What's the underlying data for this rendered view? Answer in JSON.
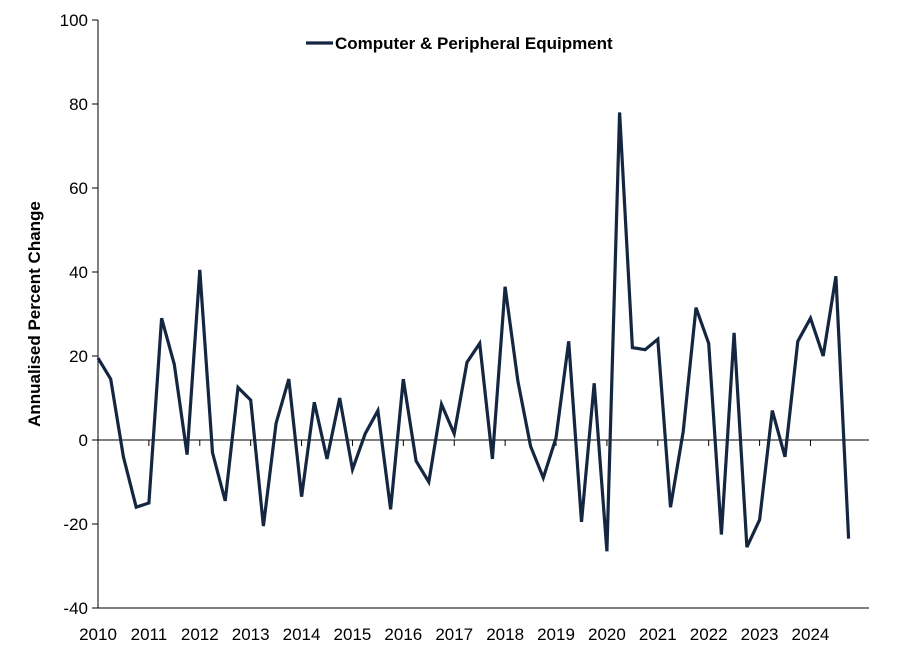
{
  "chart_data": {
    "type": "line",
    "title": "",
    "xlabel": "",
    "ylabel": "Annualised Percent Change",
    "ylim": [
      -40,
      100
    ],
    "yticks": [
      -40,
      -20,
      0,
      20,
      40,
      60,
      80,
      100
    ],
    "xlim": [
      2010,
      2025.15
    ],
    "xticks": [
      "2010",
      "2011",
      "2012",
      "2013",
      "2014",
      "2015",
      "2016",
      "2017",
      "2018",
      "2019",
      "2020",
      "2021",
      "2022",
      "2023",
      "2024"
    ],
    "grid": false,
    "legend": "top-center",
    "colors": {
      "series": "#142640",
      "axis": "#000000"
    },
    "series": [
      {
        "name": "Computer & Peripheral Equipment",
        "x": [
          2010.0,
          2010.25,
          2010.5,
          2010.75,
          2011.0,
          2011.25,
          2011.5,
          2011.75,
          2012.0,
          2012.25,
          2012.5,
          2012.75,
          2013.0,
          2013.25,
          2013.5,
          2013.75,
          2014.0,
          2014.25,
          2014.5,
          2014.75,
          2015.0,
          2015.25,
          2015.5,
          2015.75,
          2016.0,
          2016.25,
          2016.5,
          2016.75,
          2017.0,
          2017.25,
          2017.5,
          2017.75,
          2018.0,
          2018.25,
          2018.5,
          2018.75,
          2019.0,
          2019.25,
          2019.5,
          2019.75,
          2020.0,
          2020.25,
          2020.5,
          2020.75,
          2021.0,
          2021.25,
          2021.5,
          2021.75,
          2022.0,
          2022.25,
          2022.5,
          2022.75,
          2023.0,
          2023.25,
          2023.5,
          2023.75,
          2024.0,
          2024.25,
          2024.5,
          2024.75
        ],
        "values": [
          19.5,
          14.5,
          -4,
          -16,
          -15,
          29,
          18,
          -3.5,
          40.5,
          -3,
          -14.5,
          12.5,
          9.5,
          -20.5,
          4,
          14.5,
          -13.5,
          9,
          -4.5,
          10,
          -7,
          1.5,
          7,
          -16.5,
          14.5,
          -5,
          -10,
          8.5,
          1.5,
          18.5,
          23,
          -4.5,
          36.5,
          14,
          -1.5,
          -9,
          0.5,
          23.5,
          -19.5,
          13.5,
          -26.5,
          78,
          22,
          21.5,
          24,
          -16,
          2,
          31.5,
          23,
          -22.5,
          25.5,
          -25.5,
          -19,
          7,
          -4,
          23.5,
          29,
          20,
          39,
          -23.5
        ]
      }
    ]
  }
}
